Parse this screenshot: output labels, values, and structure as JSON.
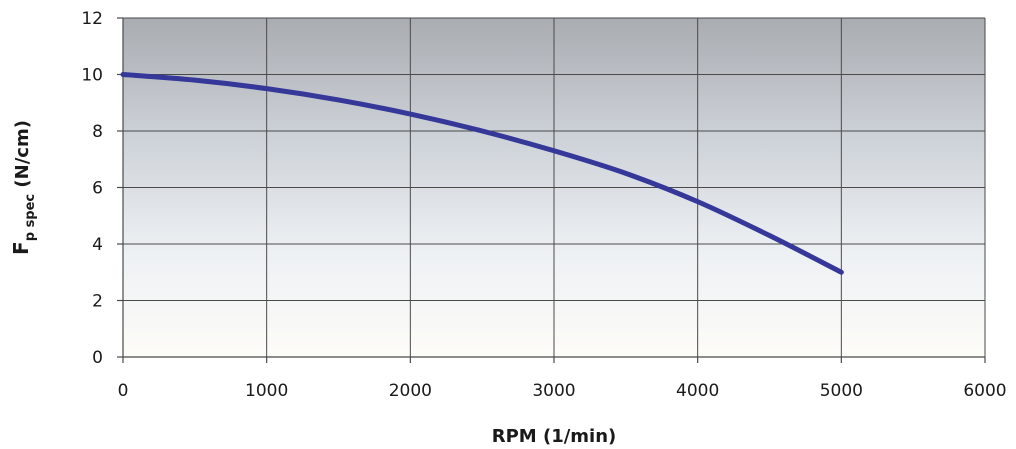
{
  "chart_data": {
    "type": "line",
    "title": "",
    "xlabel": "RPM (1/min)",
    "ylabel": {
      "main": "F",
      "subscript": "p spec",
      "suffix": " (N/cm)"
    },
    "xlim": [
      0,
      6000
    ],
    "ylim": [
      0,
      12
    ],
    "xticks": [
      0,
      1000,
      2000,
      3000,
      4000,
      5000,
      6000
    ],
    "yticks": [
      0,
      2,
      4,
      6,
      8,
      10,
      12
    ],
    "grid": true,
    "background": "vertical gradient, dark gray at top fading to near white at bottom",
    "series": [
      {
        "color": "#353799",
        "x": [
          0,
          500,
          1000,
          1500,
          2000,
          2500,
          3000,
          3500,
          4000,
          4500,
          5000
        ],
        "y": [
          10.0,
          9.8,
          9.5,
          9.1,
          8.6,
          8.0,
          7.3,
          6.5,
          5.5,
          4.3,
          3.0
        ]
      }
    ]
  }
}
